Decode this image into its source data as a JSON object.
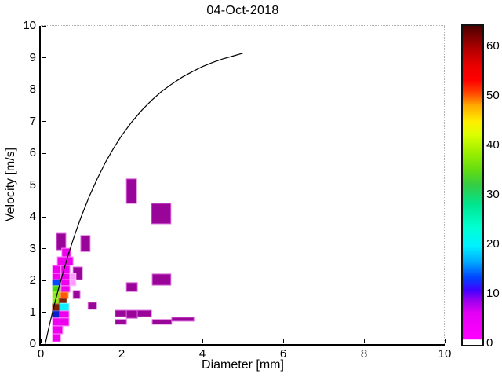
{
  "title": "04-Oct-2018",
  "chart_data": {
    "type": "heatmap",
    "title": "04-Oct-2018",
    "xlabel": "Diameter [mm]",
    "ylabel": "Velocity [m/s]",
    "xlim": [
      0,
      10
    ],
    "ylim": [
      0,
      10
    ],
    "x_ticks": [
      0,
      2,
      4,
      6,
      8,
      10
    ],
    "y_ticks": [
      0,
      1,
      2,
      3,
      4,
      5,
      6,
      7,
      8,
      9,
      10
    ],
    "grid": "off",
    "legend": "colorbar-right",
    "cells": [
      {
        "d": [
          0.39,
          0.62
        ],
        "v": [
          2.96,
          3.48
        ],
        "color": "purple"
      },
      {
        "d": [
          0.99,
          1.22
        ],
        "v": [
          2.91,
          3.41
        ],
        "color": "purple"
      },
      {
        "d": [
          0.52,
          0.74
        ],
        "v": [
          2.74,
          3.01
        ],
        "color": "magenta"
      },
      {
        "d": [
          0.41,
          0.8
        ],
        "v": [
          2.47,
          2.74
        ],
        "color": "magenta"
      },
      {
        "d": [
          0.29,
          0.5
        ],
        "v": [
          2.22,
          2.47
        ],
        "color": "magenta"
      },
      {
        "d": [
          0.5,
          0.72
        ],
        "v": [
          2.22,
          2.47
        ],
        "color": "magenta"
      },
      {
        "d": [
          0.8,
          1.03
        ],
        "v": [
          2.02,
          2.42
        ],
        "color": "purple"
      },
      {
        "d": [
          0.29,
          0.5
        ],
        "v": [
          2.02,
          2.22
        ],
        "color": "magenta"
      },
      {
        "d": [
          0.5,
          0.72
        ],
        "v": [
          2.02,
          2.22
        ],
        "color": "magenta"
      },
      {
        "d": [
          0.72,
          0.87
        ],
        "v": [
          2.02,
          2.22
        ],
        "color": "lightpink"
      },
      {
        "d": [
          0.29,
          0.5
        ],
        "v": [
          1.83,
          2.02
        ],
        "color": "blue"
      },
      {
        "d": [
          0.5,
          0.72
        ],
        "v": [
          1.83,
          2.02
        ],
        "color": "magenta"
      },
      {
        "d": [
          0.72,
          0.87
        ],
        "v": [
          1.83,
          2.02
        ],
        "color": "lightpink"
      },
      {
        "d": [
          0.29,
          0.5
        ],
        "v": [
          1.63,
          1.83
        ],
        "color": "green"
      },
      {
        "d": [
          0.5,
          0.72
        ],
        "v": [
          1.63,
          1.83
        ],
        "color": "magenta"
      },
      {
        "d": [
          0.29,
          0.48
        ],
        "v": [
          1.43,
          1.63
        ],
        "color": "green2"
      },
      {
        "d": [
          0.49,
          0.68
        ],
        "v": [
          1.43,
          1.63
        ],
        "color": "orange"
      },
      {
        "d": [
          0.8,
          0.97
        ],
        "v": [
          1.43,
          1.68
        ],
        "color": "purple"
      },
      {
        "d": [
          0.29,
          0.45
        ],
        "v": [
          1.26,
          1.43
        ],
        "color": "green2"
      },
      {
        "d": [
          0.45,
          0.64
        ],
        "v": [
          1.26,
          1.43
        ],
        "color": "brown"
      },
      {
        "d": [
          0.29,
          0.47
        ],
        "v": [
          1.04,
          1.26
        ],
        "color": "brown"
      },
      {
        "d": [
          0.47,
          0.7
        ],
        "v": [
          1.04,
          1.28
        ],
        "color": "cyan"
      },
      {
        "d": [
          1.17,
          1.38
        ],
        "v": [
          1.09,
          1.31
        ],
        "color": "purple"
      },
      {
        "d": [
          0.29,
          0.47
        ],
        "v": [
          0.82,
          1.04
        ],
        "color": "blue2"
      },
      {
        "d": [
          0.47,
          0.7
        ],
        "v": [
          0.82,
          1.04
        ],
        "color": "magenta"
      },
      {
        "d": [
          0.29,
          0.7
        ],
        "v": [
          0.57,
          0.82
        ],
        "color": "magenta"
      },
      {
        "d": [
          0.29,
          0.54
        ],
        "v": [
          0.32,
          0.57
        ],
        "color": "magenta"
      },
      {
        "d": [
          0.29,
          0.49
        ],
        "v": [
          0.07,
          0.32
        ],
        "color": "magenta"
      },
      {
        "d": [
          2.12,
          2.37
        ],
        "v": [
          4.42,
          5.19
        ],
        "color": "purple"
      },
      {
        "d": [
          2.74,
          3.22
        ],
        "v": [
          3.78,
          4.42
        ],
        "color": "purple"
      },
      {
        "d": [
          2.76,
          3.22
        ],
        "v": [
          1.85,
          2.2
        ],
        "color": "purple"
      },
      {
        "d": [
          2.12,
          2.39
        ],
        "v": [
          1.65,
          1.93
        ],
        "color": "purple"
      },
      {
        "d": [
          1.84,
          2.12
        ],
        "v": [
          0.86,
          1.06
        ],
        "color": "purple"
      },
      {
        "d": [
          2.12,
          2.39
        ],
        "v": [
          0.81,
          1.06
        ],
        "color": "purple"
      },
      {
        "d": [
          2.39,
          2.74
        ],
        "v": [
          0.86,
          1.06
        ],
        "color": "purple"
      },
      {
        "d": [
          1.84,
          2.12
        ],
        "v": [
          0.62,
          0.77
        ],
        "color": "purple"
      },
      {
        "d": [
          2.76,
          3.24
        ],
        "v": [
          0.62,
          0.77
        ],
        "color": "purple"
      },
      {
        "d": [
          3.24,
          3.79
        ],
        "v": [
          0.72,
          0.84
        ],
        "color": "purple"
      }
    ],
    "curve": {
      "name": "terminal-velocity-curve",
      "color": "#000000",
      "points": [
        [
          0.11,
          0
        ],
        [
          0.2,
          0.52
        ],
        [
          0.3,
          1.05
        ],
        [
          0.4,
          1.55
        ],
        [
          0.5,
          2.02
        ],
        [
          0.6,
          2.46
        ],
        [
          0.7,
          2.88
        ],
        [
          0.8,
          3.28
        ],
        [
          0.9,
          3.65
        ],
        [
          1.0,
          4.0
        ],
        [
          1.2,
          4.64
        ],
        [
          1.4,
          5.2
        ],
        [
          1.6,
          5.71
        ],
        [
          1.8,
          6.15
        ],
        [
          2.0,
          6.55
        ],
        [
          2.25,
          6.98
        ],
        [
          2.5,
          7.35
        ],
        [
          2.75,
          7.67
        ],
        [
          3.0,
          7.95
        ],
        [
          3.25,
          8.18
        ],
        [
          3.5,
          8.39
        ],
        [
          3.75,
          8.56
        ],
        [
          4.0,
          8.72
        ],
        [
          4.25,
          8.85
        ],
        [
          4.5,
          8.96
        ],
        [
          4.75,
          9.05
        ],
        [
          5.0,
          9.14
        ]
      ]
    }
  },
  "palette": {
    "magenta": {
      "fill": "#ee00ee",
      "edge": "#ff8aff"
    },
    "purple": {
      "fill": "#990599",
      "edge": "#d965d9"
    },
    "lightpink": {
      "fill": "#ff9aff",
      "edge": "#ffccff"
    },
    "blue": {
      "fill": "#0747ff",
      "edge": "#6b8cff"
    },
    "blue2": {
      "fill": "#0a1ed0",
      "edge": "#5560e0"
    },
    "cyan": {
      "fill": "#11eeff",
      "edge": "#8ff7ff"
    },
    "green": {
      "fill": "#46d80b",
      "edge": "#9ae86a"
    },
    "green2": {
      "fill": "#8ce613",
      "edge": "#c2f27a"
    },
    "orange": {
      "fill": "#ff5a00",
      "edge": "#ffa060"
    },
    "brown": {
      "fill": "#7a1d04",
      "edge": "#b06040"
    }
  },
  "colorbar": {
    "ticks": [
      0,
      10,
      20,
      30,
      40,
      50,
      60
    ],
    "vmax": 64.5,
    "gradient": [
      {
        "at": 0.0,
        "color": "#ffffff"
      },
      {
        "at": 0.015,
        "color": "#ffffff"
      },
      {
        "at": 0.02,
        "color": "#ff00ff"
      },
      {
        "at": 0.1,
        "color": "#e400f4"
      },
      {
        "at": 0.14,
        "color": "#9900ee"
      },
      {
        "at": 0.17,
        "color": "#4400ff"
      },
      {
        "at": 0.21,
        "color": "#0044ff"
      },
      {
        "at": 0.26,
        "color": "#00aaff"
      },
      {
        "at": 0.31,
        "color": "#00f2ff"
      },
      {
        "at": 0.37,
        "color": "#00ffd0"
      },
      {
        "at": 0.44,
        "color": "#00e690"
      },
      {
        "at": 0.5,
        "color": "#33cc44"
      },
      {
        "at": 0.55,
        "color": "#66dd11"
      },
      {
        "at": 0.6,
        "color": "#99ee00"
      },
      {
        "at": 0.66,
        "color": "#ddff00"
      },
      {
        "at": 0.7,
        "color": "#ffee00"
      },
      {
        "at": 0.75,
        "color": "#ffaa00"
      },
      {
        "at": 0.79,
        "color": "#ff4400"
      },
      {
        "at": 0.83,
        "color": "#ff0000"
      },
      {
        "at": 0.87,
        "color": "#ee0000"
      },
      {
        "at": 0.92,
        "color": "#bb0000"
      },
      {
        "at": 1.0,
        "color": "#4d0000"
      }
    ]
  }
}
